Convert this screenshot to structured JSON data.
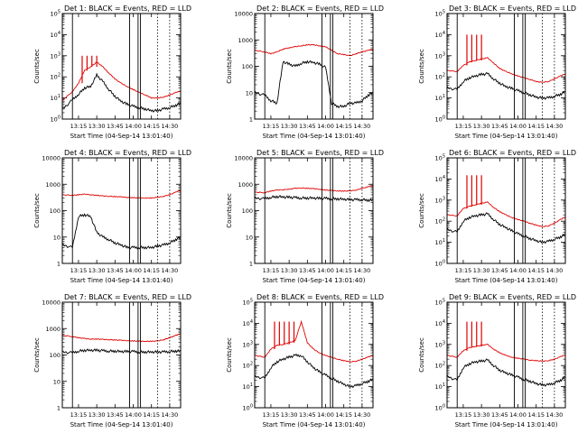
{
  "figure": {
    "x_ticks": [
      "13:15",
      "13:30",
      "13:45",
      "14:00",
      "14:15",
      "14:30"
    ],
    "xlabel": "Start Time (04-Sep-14 13:01:40)",
    "ylabel": "Counts/sec",
    "colors": {
      "events": "#000000",
      "lld": "#e00000",
      "axes": "#000000",
      "background": "#ffffff"
    }
  },
  "chart_data": [
    {
      "type": "line",
      "title": "Det 1: BLACK = Events, RED = LLD",
      "ylabel": "Counts/sec",
      "xlabel": "Start Time (04-Sep-14 13:01:40)",
      "xlim": [
        "13:01:40",
        "14:39:00"
      ],
      "ylim": [
        1,
        100000
      ],
      "yscale": "log",
      "ytick_style": "power",
      "x": [
        "13:02",
        "13:10",
        "13:15",
        "13:20",
        "13:25",
        "13:30",
        "13:35",
        "13:40",
        "13:45",
        "13:50",
        "13:55",
        "14:00",
        "14:05",
        "14:10",
        "14:15",
        "14:20",
        "14:25",
        "14:30",
        "14:35",
        "14:39"
      ],
      "series": [
        {
          "name": "Events",
          "color": "#000000",
          "values": [
            3,
            8,
            15,
            30,
            35,
            120,
            60,
            25,
            12,
            7,
            5,
            4,
            3.5,
            3,
            2.5,
            2.5,
            3,
            3.5,
            4.5,
            5.5
          ]
        },
        {
          "name": "LLD",
          "color": "#e00000",
          "values": [
            8,
            20,
            50,
            200,
            300,
            500,
            300,
            150,
            80,
            50,
            35,
            25,
            18,
            14,
            10,
            10,
            11,
            14,
            18,
            22
          ]
        }
      ],
      "spikes": [
        {
          "series": "LLD",
          "x": [
            "13:18",
            "13:22",
            "13:26",
            "13:30"
          ],
          "peak": 1000
        }
      ],
      "vlines_solid": [
        "13:10",
        "13:57",
        "14:04",
        "14:06"
      ],
      "vlines_dotted": [
        "14:20",
        "14:30"
      ]
    },
    {
      "type": "line",
      "title": "Det 2: BLACK = Events, RED = LLD",
      "ylabel": "Counts/sec",
      "xlabel": "Start Time (04-Sep-14 13:01:40)",
      "xlim": [
        "13:01:40",
        "14:39:00"
      ],
      "ylim": [
        1,
        10000
      ],
      "yscale": "log",
      "ytick_style": "plain",
      "x": [
        "13:02",
        "13:10",
        "13:15",
        "13:20",
        "13:25",
        "13:30",
        "13:35",
        "13:40",
        "13:45",
        "13:50",
        "13:55",
        "14:00",
        "14:05",
        "14:10",
        "14:15",
        "14:20",
        "14:25",
        "14:30",
        "14:35",
        "14:39"
      ],
      "series": [
        {
          "name": "Events",
          "color": "#000000",
          "values": [
            10,
            8,
            5,
            4,
            150,
            120,
            100,
            130,
            150,
            140,
            120,
            90,
            4,
            3,
            3,
            4,
            4,
            5,
            8,
            10
          ]
        },
        {
          "name": "LLD",
          "color": "#e00000",
          "values": [
            400,
            350,
            300,
            350,
            450,
            500,
            550,
            600,
            650,
            650,
            600,
            550,
            400,
            300,
            280,
            250,
            300,
            350,
            400,
            450
          ]
        }
      ],
      "vlines_solid": [
        "13:10",
        "13:57",
        "14:04",
        "14:06"
      ],
      "vlines_dotted": [
        "14:20",
        "14:30"
      ]
    },
    {
      "type": "line",
      "title": "Det 3: BLACK = Events, RED = LLD",
      "ylabel": "Counts/sec",
      "xlabel": "Start Time (04-Sep-14 13:01:40)",
      "xlim": [
        "13:01:40",
        "14:39:00"
      ],
      "ylim": [
        1,
        100000
      ],
      "yscale": "log",
      "ytick_style": "power",
      "x": [
        "13:02",
        "13:10",
        "13:15",
        "13:20",
        "13:25",
        "13:30",
        "13:35",
        "13:40",
        "13:45",
        "13:50",
        "13:55",
        "14:00",
        "14:05",
        "14:10",
        "14:15",
        "14:20",
        "14:25",
        "14:30",
        "14:35",
        "14:39"
      ],
      "series": [
        {
          "name": "Events",
          "color": "#000000",
          "values": [
            30,
            25,
            60,
            90,
            110,
            130,
            140,
            80,
            50,
            35,
            28,
            22,
            18,
            14,
            11,
            10,
            10,
            12,
            15,
            20
          ]
        },
        {
          "name": "LLD",
          "color": "#e00000",
          "values": [
            200,
            180,
            350,
            500,
            600,
            700,
            800,
            450,
            250,
            180,
            140,
            110,
            90,
            75,
            60,
            55,
            60,
            80,
            110,
            140
          ]
        }
      ],
      "spikes": [
        {
          "series": "LLD",
          "x": [
            "13:18",
            "13:22",
            "13:26",
            "13:30"
          ],
          "peak": 10000
        }
      ],
      "vlines_solid": [
        "13:10",
        "13:57",
        "14:04",
        "14:06"
      ],
      "vlines_dotted": [
        "14:20",
        "14:30"
      ]
    },
    {
      "type": "line",
      "title": "Det 4: BLACK = Events, RED = LLD",
      "ylabel": "Counts/sec",
      "xlabel": "Start Time (04-Sep-14 13:01:40)",
      "xlim": [
        "13:01:40",
        "14:39:00"
      ],
      "ylim": [
        1,
        10000
      ],
      "yscale": "log",
      "ytick_style": "plain",
      "x": [
        "13:02",
        "13:10",
        "13:15",
        "13:20",
        "13:25",
        "13:30",
        "13:35",
        "13:40",
        "13:45",
        "13:50",
        "13:55",
        "14:00",
        "14:05",
        "14:10",
        "14:15",
        "14:20",
        "14:25",
        "14:30",
        "14:35",
        "14:39"
      ],
      "series": [
        {
          "name": "Events",
          "color": "#000000",
          "values": [
            5,
            4,
            60,
            70,
            60,
            15,
            10,
            8,
            6,
            5,
            4,
            4,
            4,
            4,
            4,
            4.5,
            5,
            6,
            8,
            10
          ]
        },
        {
          "name": "LLD",
          "color": "#e00000",
          "values": [
            400,
            380,
            400,
            420,
            400,
            380,
            360,
            350,
            340,
            330,
            320,
            310,
            300,
            300,
            300,
            320,
            350,
            400,
            500,
            600
          ]
        }
      ],
      "vlines_solid": [
        "13:10",
        "13:57",
        "14:04",
        "14:06"
      ],
      "vlines_dotted": [
        "14:20",
        "14:30"
      ]
    },
    {
      "type": "line",
      "title": "Det 5: BLACK = Events, RED = LLD",
      "ylabel": "Counts/sec",
      "xlabel": "Start Time (04-Sep-14 13:01:40)",
      "xlim": [
        "13:01:40",
        "14:39:00"
      ],
      "ylim": [
        1,
        10000
      ],
      "yscale": "log",
      "ytick_style": "plain",
      "x": [
        "13:02",
        "13:10",
        "13:15",
        "13:20",
        "13:25",
        "13:30",
        "13:35",
        "13:40",
        "13:45",
        "13:50",
        "13:55",
        "14:00",
        "14:05",
        "14:10",
        "14:15",
        "14:20",
        "14:25",
        "14:30",
        "14:35",
        "14:39"
      ],
      "series": [
        {
          "name": "Events",
          "color": "#000000",
          "values": [
            300,
            280,
            320,
            340,
            330,
            320,
            310,
            300,
            300,
            300,
            290,
            290,
            280,
            280,
            270,
            260,
            260,
            260,
            250,
            250
          ]
        },
        {
          "name": "LLD",
          "color": "#e00000",
          "values": [
            500,
            480,
            550,
            600,
            620,
            650,
            700,
            720,
            700,
            680,
            650,
            600,
            580,
            560,
            550,
            560,
            600,
            700,
            800,
            900
          ]
        }
      ],
      "vlines_solid": [
        "13:10",
        "13:57",
        "14:04",
        "14:06"
      ],
      "vlines_dotted": [
        "14:20",
        "14:30"
      ]
    },
    {
      "type": "line",
      "title": "Det 6: BLACK = Events, RED = LLD",
      "ylabel": "Counts/sec",
      "xlabel": "Start Time (04-Sep-14 13:01:40)",
      "xlim": [
        "13:01:40",
        "14:39:00"
      ],
      "ylim": [
        1,
        100000
      ],
      "yscale": "log",
      "ytick_style": "power",
      "x": [
        "13:02",
        "13:10",
        "13:15",
        "13:20",
        "13:25",
        "13:30",
        "13:35",
        "13:40",
        "13:45",
        "13:50",
        "13:55",
        "14:00",
        "14:05",
        "14:10",
        "14:15",
        "14:20",
        "14:25",
        "14:30",
        "14:35",
        "14:39"
      ],
      "series": [
        {
          "name": "Events",
          "color": "#000000",
          "values": [
            40,
            30,
            100,
            150,
            180,
            200,
            220,
            120,
            70,
            50,
            35,
            25,
            20,
            15,
            12,
            10,
            11,
            14,
            18,
            24
          ]
        },
        {
          "name": "LLD",
          "color": "#e00000",
          "values": [
            200,
            180,
            400,
            500,
            600,
            700,
            800,
            450,
            280,
            200,
            150,
            120,
            100,
            80,
            65,
            55,
            60,
            80,
            120,
            160
          ]
        }
      ],
      "spikes": [
        {
          "series": "LLD",
          "x": [
            "13:18",
            "13:22",
            "13:26",
            "13:30"
          ],
          "peak": 15000
        }
      ],
      "vlines_solid": [
        "13:10",
        "13:57",
        "14:04",
        "14:06"
      ],
      "vlines_dotted": [
        "14:20",
        "14:30"
      ]
    },
    {
      "type": "line",
      "title": "Det 7: BLACK = Events, RED = LLD",
      "ylabel": "Counts/sec",
      "xlabel": "Start Time (04-Sep-14 13:01:40)",
      "xlim": [
        "13:01:40",
        "14:39:00"
      ],
      "ylim": [
        1,
        10000
      ],
      "yscale": "log",
      "ytick_style": "plain",
      "x": [
        "13:02",
        "13:10",
        "13:15",
        "13:20",
        "13:25",
        "13:30",
        "13:35",
        "13:40",
        "13:45",
        "13:50",
        "13:55",
        "14:00",
        "14:05",
        "14:10",
        "14:15",
        "14:20",
        "14:25",
        "14:30",
        "14:35",
        "14:39"
      ],
      "series": [
        {
          "name": "Events",
          "color": "#000000",
          "values": [
            130,
            120,
            140,
            150,
            150,
            150,
            145,
            140,
            140,
            135,
            135,
            135,
            130,
            130,
            130,
            130,
            130,
            135,
            140,
            140
          ]
        },
        {
          "name": "LLD",
          "color": "#e00000",
          "values": [
            550,
            500,
            450,
            420,
            400,
            400,
            390,
            380,
            370,
            360,
            350,
            340,
            330,
            330,
            330,
            340,
            380,
            450,
            550,
            650
          ]
        }
      ],
      "vlines_solid": [
        "13:10",
        "13:57",
        "14:04",
        "14:06"
      ],
      "vlines_dotted": [
        "14:20",
        "14:30"
      ]
    },
    {
      "type": "line",
      "title": "Det 8: BLACK = Events, RED = LLD",
      "ylabel": "Counts/sec",
      "xlabel": "Start Time (04-Sep-14 13:01:40)",
      "xlim": [
        "13:01:40",
        "14:39:00"
      ],
      "ylim": [
        1,
        100000
      ],
      "yscale": "log",
      "ytick_style": "power",
      "x": [
        "13:02",
        "13:10",
        "13:15",
        "13:20",
        "13:25",
        "13:30",
        "13:35",
        "13:40",
        "13:45",
        "13:50",
        "13:55",
        "14:00",
        "14:05",
        "14:10",
        "14:15",
        "14:20",
        "14:25",
        "14:30",
        "14:35",
        "14:39"
      ],
      "series": [
        {
          "name": "Events",
          "color": "#000000",
          "values": [
            30,
            25,
            80,
            150,
            200,
            250,
            300,
            300,
            150,
            80,
            50,
            35,
            25,
            18,
            13,
            10,
            11,
            14,
            18,
            22
          ]
        },
        {
          "name": "LLD",
          "color": "#e00000",
          "values": [
            300,
            250,
            600,
            900,
            1000,
            1200,
            1500,
            12000,
            1200,
            600,
            400,
            300,
            240,
            200,
            170,
            150,
            160,
            200,
            250,
            300
          ]
        }
      ],
      "spikes": [
        {
          "series": "LLD",
          "x": [
            "13:18",
            "13:22",
            "13:26",
            "13:30",
            "13:34"
          ],
          "peak": 12000
        }
      ],
      "vlines_solid": [
        "13:10",
        "13:57",
        "14:04",
        "14:06"
      ],
      "vlines_dotted": [
        "14:20",
        "14:30"
      ]
    },
    {
      "type": "line",
      "title": "Det 9: BLACK = Events, RED = LLD",
      "ylabel": "Counts/sec",
      "xlabel": "Start Time (04-Sep-14 13:01:40)",
      "xlim": [
        "13:01:40",
        "14:39:00"
      ],
      "ylim": [
        1,
        100000
      ],
      "yscale": "log",
      "ytick_style": "power",
      "x": [
        "13:02",
        "13:10",
        "13:15",
        "13:20",
        "13:25",
        "13:30",
        "13:35",
        "13:40",
        "13:45",
        "13:50",
        "13:55",
        "14:00",
        "14:05",
        "14:10",
        "14:15",
        "14:20",
        "14:25",
        "14:30",
        "14:35",
        "14:39"
      ],
      "series": [
        {
          "name": "Events",
          "color": "#000000",
          "values": [
            30,
            20,
            80,
            120,
            150,
            160,
            180,
            100,
            60,
            45,
            35,
            28,
            22,
            18,
            14,
            12,
            12,
            15,
            20,
            28
          ]
        },
        {
          "name": "LLD",
          "color": "#e00000",
          "values": [
            300,
            250,
            500,
            700,
            800,
            900,
            1000,
            600,
            400,
            300,
            250,
            220,
            200,
            180,
            170,
            160,
            170,
            200,
            260,
            320
          ]
        }
      ],
      "spikes": [
        {
          "series": "LLD",
          "x": [
            "13:18",
            "13:22",
            "13:26",
            "13:30"
          ],
          "peak": 12000
        }
      ],
      "vlines_solid": [
        "13:10",
        "13:57",
        "14:04",
        "14:06"
      ],
      "vlines_dotted": [
        "14:20",
        "14:30"
      ]
    }
  ]
}
